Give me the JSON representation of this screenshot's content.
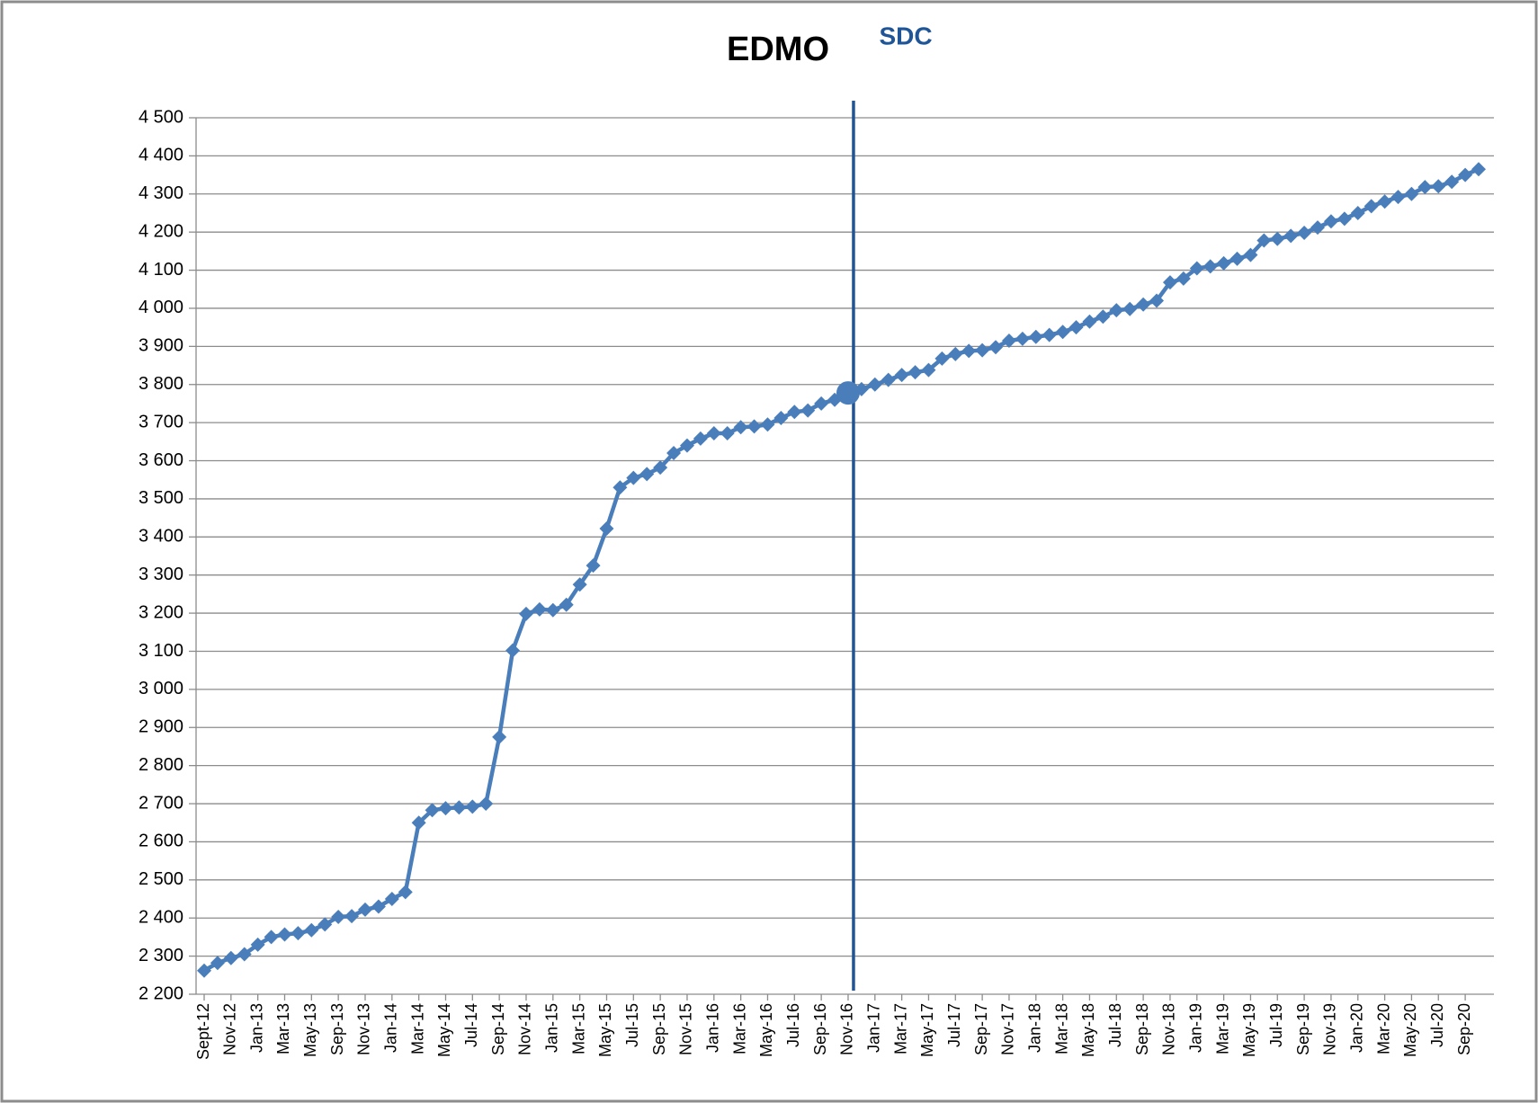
{
  "chart_data": {
    "type": "line",
    "title": "EDMO",
    "annotations": [
      {
        "text": "SDC",
        "category": "Nov-16",
        "color": "#1f5597"
      }
    ],
    "categories": [
      "Sept-12",
      null,
      "Nov-12",
      null,
      "Jan-13",
      null,
      "Mar-13",
      null,
      "May-13",
      null,
      "Sep-13",
      null,
      "Nov-13",
      null,
      "Jan-14",
      null,
      "Mar-14",
      null,
      "May-14",
      null,
      "Jul-14",
      null,
      "Sep-14",
      null,
      "Nov-14",
      null,
      "Jan-15",
      null,
      "Mar-15",
      null,
      "May-15",
      null,
      "Jul-15",
      null,
      "Sep-15",
      null,
      "Nov-15",
      null,
      "Jan-16",
      null,
      "Mar-16",
      null,
      "May-16",
      null,
      "Jul-16",
      null,
      "Sep-16",
      null,
      "Nov-16",
      null,
      "Jan-17",
      null,
      "Mar-17",
      null,
      "May-17",
      null,
      "Jul-17",
      null,
      "Sep-17",
      null,
      "Nov-17",
      null,
      "Jan-18",
      null,
      "Mar-18",
      null,
      "May-18",
      null,
      "Jul-18",
      null,
      "Sep-18",
      null,
      "Nov-18",
      null,
      "Jan-19",
      null,
      "Mar-19",
      null,
      "May-19",
      null,
      "Jul-19",
      null,
      "Sep-19",
      null,
      "Nov-19",
      null,
      "Jan-20",
      null,
      "Mar-20",
      null,
      "May-20",
      null,
      "Jul-20",
      null,
      "Sep-20",
      null
    ],
    "values": [
      2262,
      2282,
      2295,
      2305,
      2330,
      2350,
      2357,
      2360,
      2368,
      2383,
      2403,
      2405,
      2422,
      2430,
      2450,
      2468,
      2650,
      2683,
      2688,
      2690,
      2692,
      2700,
      2875,
      3102,
      3198,
      3210,
      3208,
      3222,
      3275,
      3325,
      3422,
      3530,
      3555,
      3565,
      3582,
      3620,
      3640,
      3658,
      3672,
      3672,
      3688,
      3690,
      3695,
      3712,
      3728,
      3732,
      3750,
      3760,
      3778,
      3788,
      3800,
      3812,
      3825,
      3832,
      3838,
      3868,
      3880,
      3888,
      3890,
      3898,
      3915,
      3920,
      3925,
      3930,
      3938,
      3950,
      3965,
      3978,
      3995,
      3998,
      4010,
      4020,
      4068,
      4078,
      4105,
      4110,
      4118,
      4130,
      4140,
      4178,
      4182,
      4190,
      4198,
      4212,
      4228,
      4235,
      4250,
      4268,
      4280,
      4292,
      4300,
      4318,
      4320,
      4332,
      4350,
      4365
    ],
    "color": "#4a7ebb",
    "ylim": [
      2200,
      4500
    ],
    "yticks": [
      {
        "value": 2200,
        "label": "2 200"
      },
      {
        "value": 2300,
        "label": "2 300"
      },
      {
        "value": 2400,
        "label": "2 400"
      },
      {
        "value": 2500,
        "label": "2 500"
      },
      {
        "value": 2600,
        "label": "2 600"
      },
      {
        "value": 2700,
        "label": "2 700"
      },
      {
        "value": 2800,
        "label": "2 800"
      },
      {
        "value": 2900,
        "label": "2 900"
      },
      {
        "value": 3000,
        "label": "3 000"
      },
      {
        "value": 3100,
        "label": "3 100"
      },
      {
        "value": 3200,
        "label": "3 200"
      },
      {
        "value": 3300,
        "label": "3 300"
      },
      {
        "value": 3400,
        "label": "3 400"
      },
      {
        "value": 3500,
        "label": "3 500"
      },
      {
        "value": 3600,
        "label": "3 600"
      },
      {
        "value": 3700,
        "label": "3 700"
      },
      {
        "value": 3800,
        "label": "3 800"
      },
      {
        "value": 3900,
        "label": "3 900"
      },
      {
        "value": 4000,
        "label": "4 000"
      },
      {
        "value": 4100,
        "label": "4 100"
      },
      {
        "value": 4200,
        "label": "4 200"
      },
      {
        "value": 4300,
        "label": "4 300"
      },
      {
        "value": 4400,
        "label": "4 400"
      },
      {
        "value": 4500,
        "label": "4 500"
      }
    ],
    "grid": true
  }
}
